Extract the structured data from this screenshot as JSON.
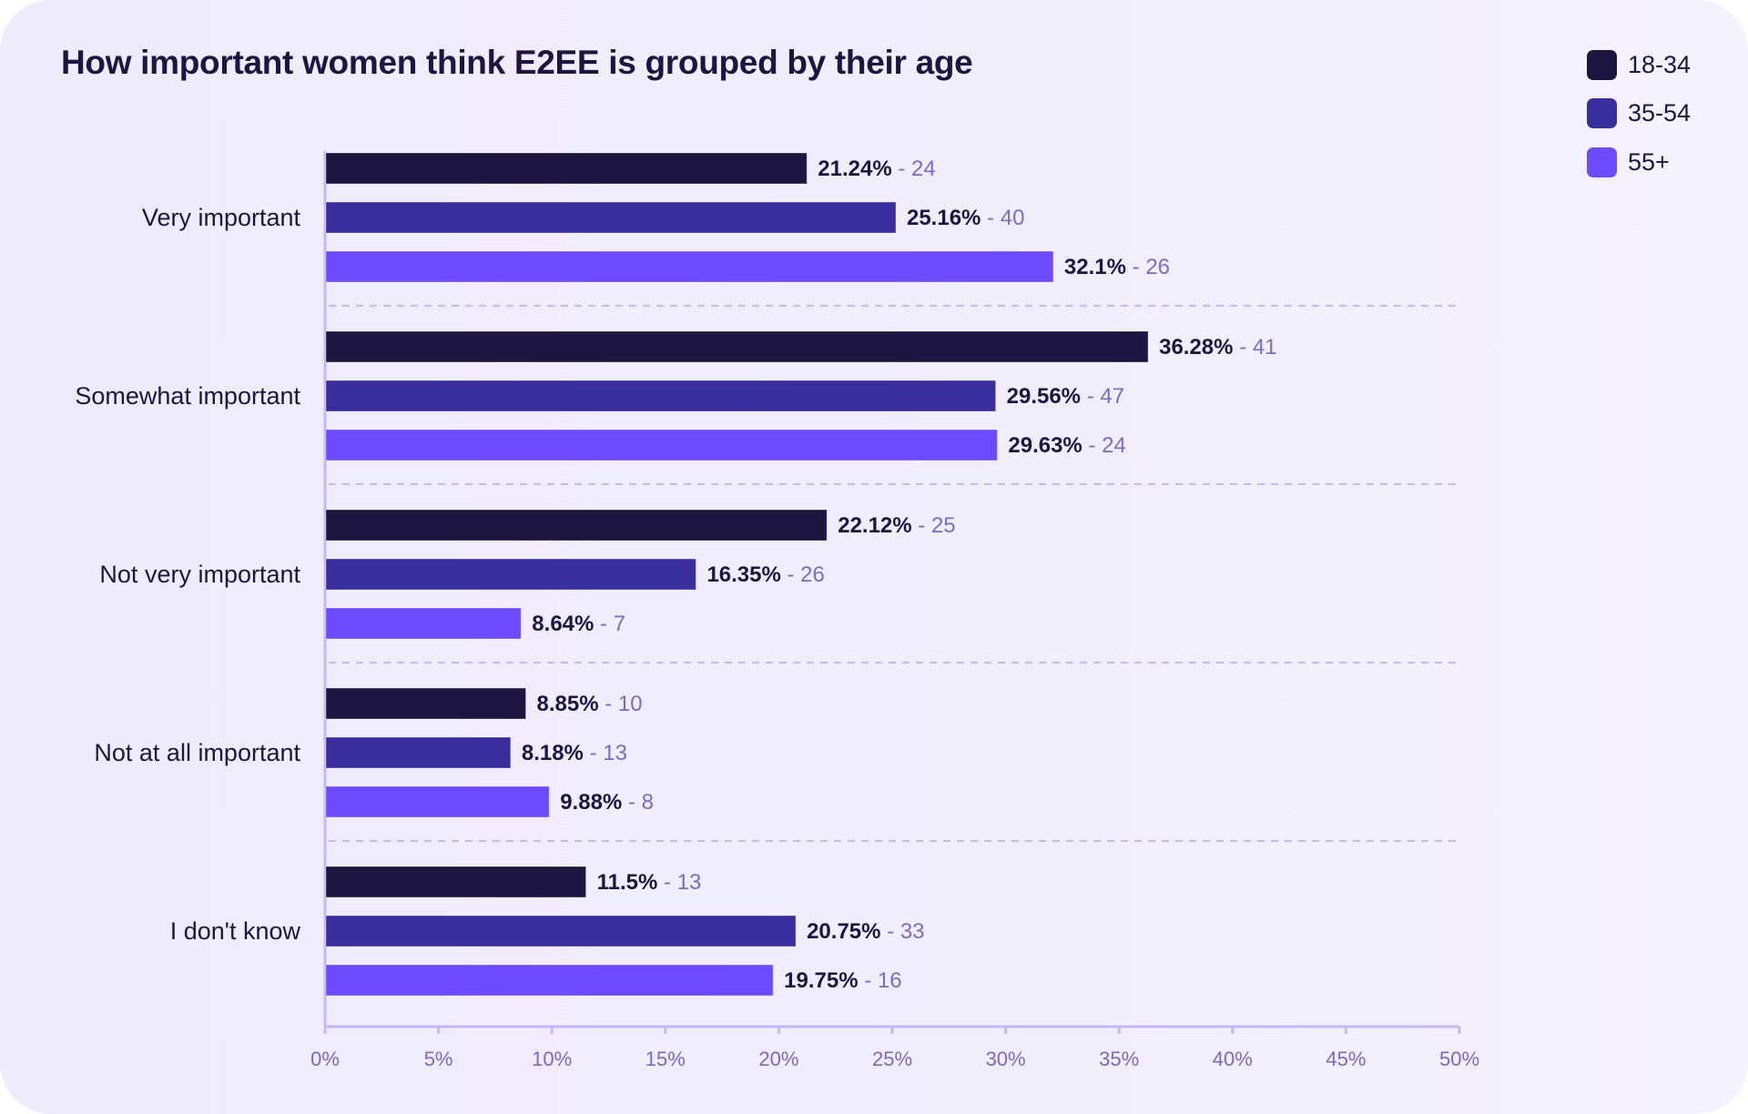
{
  "title": "How important women think E2EE is grouped by their age",
  "legend": [
    {
      "label": "18-34",
      "color": "#1C1640"
    },
    {
      "label": "35-54",
      "color": "#3A2E9E"
    },
    {
      "label": "55+",
      "color": "#6C4BFF"
    }
  ],
  "colors": {
    "axis": "#C4B8F6",
    "separator": "#C4B8F6",
    "text_dark": "#1C1640",
    "text_count": "#7B6BC4",
    "tick_text": "#7A68C2",
    "background": "#EFECFC"
  },
  "chart_data": {
    "type": "bar",
    "orientation": "horizontal",
    "title": "How important women think E2EE is grouped by their age",
    "xlabel": "",
    "ylabel": "",
    "xlim": [
      0,
      50
    ],
    "x_unit": "%",
    "x_ticks": [
      "0%",
      "5%",
      "10%",
      "15%",
      "20%",
      "25%",
      "30%",
      "35%",
      "40%",
      "45%",
      "50%"
    ],
    "x_tick_values": [
      0,
      5,
      10,
      15,
      20,
      25,
      30,
      35,
      40,
      45,
      50
    ],
    "grid": false,
    "group_separators": "dashed",
    "legend_position": "top-right",
    "categories": [
      "Very important",
      "Somewhat important",
      "Not very important",
      "Not at all important",
      "I don't know"
    ],
    "series": [
      {
        "name": "18-34",
        "color": "#1C1640",
        "values": [
          21.24,
          36.28,
          22.12,
          8.85,
          11.5
        ],
        "labels": [
          "21.24%",
          "36.28%",
          "22.12%",
          "8.85%",
          "11.5%"
        ],
        "counts": [
          24,
          41,
          25,
          10,
          13
        ]
      },
      {
        "name": "35-54",
        "color": "#3A2E9E",
        "values": [
          25.16,
          29.56,
          16.35,
          8.18,
          20.75
        ],
        "labels": [
          "25.16%",
          "29.56%",
          "16.35%",
          "8.18%",
          "20.75%"
        ],
        "counts": [
          40,
          47,
          26,
          13,
          33
        ]
      },
      {
        "name": "55+",
        "color": "#6C4BFF",
        "values": [
          32.1,
          29.63,
          8.64,
          9.88,
          19.75
        ],
        "labels": [
          "32.1%",
          "29.63%",
          "8.64%",
          "9.88%",
          "19.75%"
        ],
        "counts": [
          26,
          24,
          7,
          8,
          16
        ]
      }
    ]
  }
}
